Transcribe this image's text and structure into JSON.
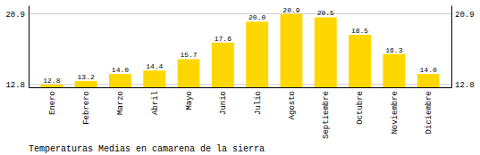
{
  "chart_data": {
    "type": "bar",
    "title": "Temperaturas Medias en camarena de la sierra",
    "categories": [
      "Enero",
      "Febrero",
      "Marzo",
      "Abril",
      "Mayo",
      "Junio",
      "Julio",
      "Agosto",
      "Septiembre",
      "Octubre",
      "Noviembre",
      "Diciembre"
    ],
    "values": [
      12.8,
      13.2,
      14.0,
      14.4,
      15.7,
      17.6,
      20.0,
      20.9,
      20.5,
      18.5,
      16.3,
      14.0
    ],
    "value_labels": [
      "12.8",
      "13.2",
      "14.0",
      "14.4",
      "15.7",
      "17.6",
      "20.0",
      "20.9",
      "20.5",
      "18.5",
      "16.3",
      "14.0"
    ],
    "data_labels": true,
    "color": "#FFD700",
    "ylim": [
      12.476,
      21.872
    ],
    "yticks": [
      12.8,
      20.9
    ],
    "y2lim": [
      12.476,
      21.872
    ],
    "y2ticks": [
      12.8,
      20.9
    ],
    "grid": true
  }
}
